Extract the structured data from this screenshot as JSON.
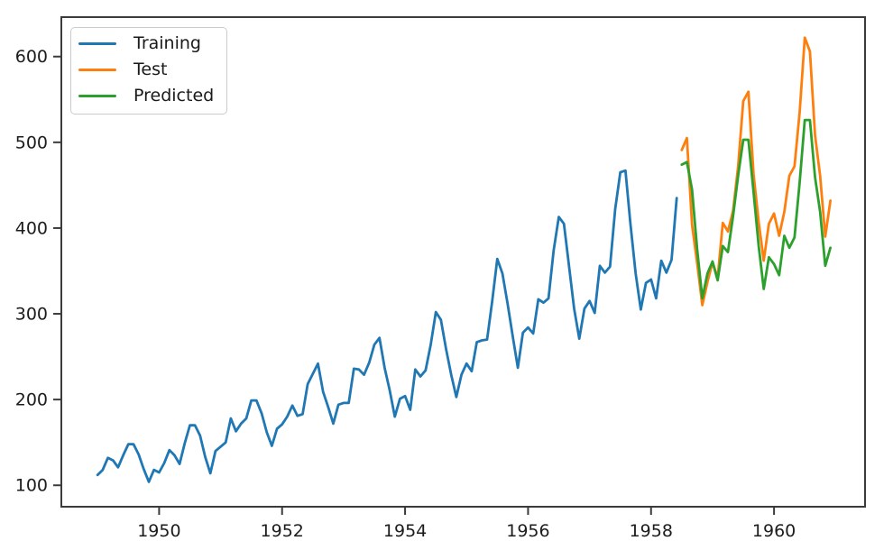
{
  "figure": {
    "background": "#ffffff",
    "spine_color": "#3b3b3b",
    "tick_label_color": "#1c1c1c"
  },
  "legend": {
    "position": "upper-left",
    "items": [
      {
        "label": "Training",
        "color": "#1f77b4"
      },
      {
        "label": "Test",
        "color": "#ff7f0e"
      },
      {
        "label": "Predicted",
        "color": "#2ca02c"
      }
    ]
  },
  "chart_data": {
    "type": "line",
    "title": "",
    "xlabel": "",
    "ylabel": "",
    "grid": false,
    "legend_position": "upper left",
    "xlim": [
      1948.41,
      1961.48
    ],
    "ylim": [
      75,
      646
    ],
    "x_ticks": [
      1950,
      1952,
      1954,
      1956,
      1958,
      1960
    ],
    "y_ticks": [
      100,
      200,
      300,
      400,
      500,
      600
    ],
    "x_unit": "year-month",
    "series": [
      {
        "name": "Training",
        "color": "#1f77b4",
        "start": "1949-01",
        "values": [
          112,
          118,
          132,
          129,
          121,
          135,
          148,
          148,
          136,
          119,
          104,
          118,
          115,
          126,
          141,
          135,
          125,
          149,
          170,
          170,
          158,
          133,
          114,
          140,
          145,
          150,
          178,
          163,
          172,
          178,
          199,
          199,
          184,
          162,
          146,
          166,
          171,
          180,
          193,
          181,
          183,
          218,
          230,
          242,
          209,
          191,
          172,
          194,
          196,
          196,
          236,
          235,
          229,
          243,
          264,
          272,
          237,
          211,
          180,
          201,
          204,
          188,
          235,
          227,
          234,
          264,
          302,
          293,
          259,
          229,
          203,
          229,
          242,
          233,
          267,
          269,
          270,
          315,
          364,
          347,
          312,
          274,
          237,
          278,
          284,
          277,
          317,
          313,
          318,
          374,
          413,
          405,
          355,
          306,
          271,
          306,
          315,
          301,
          356,
          348,
          355,
          422,
          465,
          467,
          404,
          347,
          305,
          336,
          340,
          318,
          362,
          348,
          363,
          435
        ]
      },
      {
        "name": "Test",
        "color": "#ff7f0e",
        "start": "1958-07",
        "values": [
          491,
          505,
          404,
          359,
          310,
          337,
          360,
          342,
          406,
          396,
          420,
          472,
          548,
          559,
          463,
          407,
          362,
          405,
          417,
          391,
          419,
          461,
          472,
          535,
          622,
          606,
          508,
          461,
          390,
          432
        ]
      },
      {
        "name": "Predicted",
        "color": "#2ca02c",
        "start": "1958-07",
        "values": [
          474,
          477,
          445,
          375,
          318,
          347,
          361,
          339,
          379,
          372,
          414,
          461,
          503,
          503,
          442,
          379,
          329,
          366,
          358,
          345,
          391,
          377,
          389,
          453,
          526,
          526,
          459,
          419,
          356,
          377
        ]
      }
    ]
  }
}
